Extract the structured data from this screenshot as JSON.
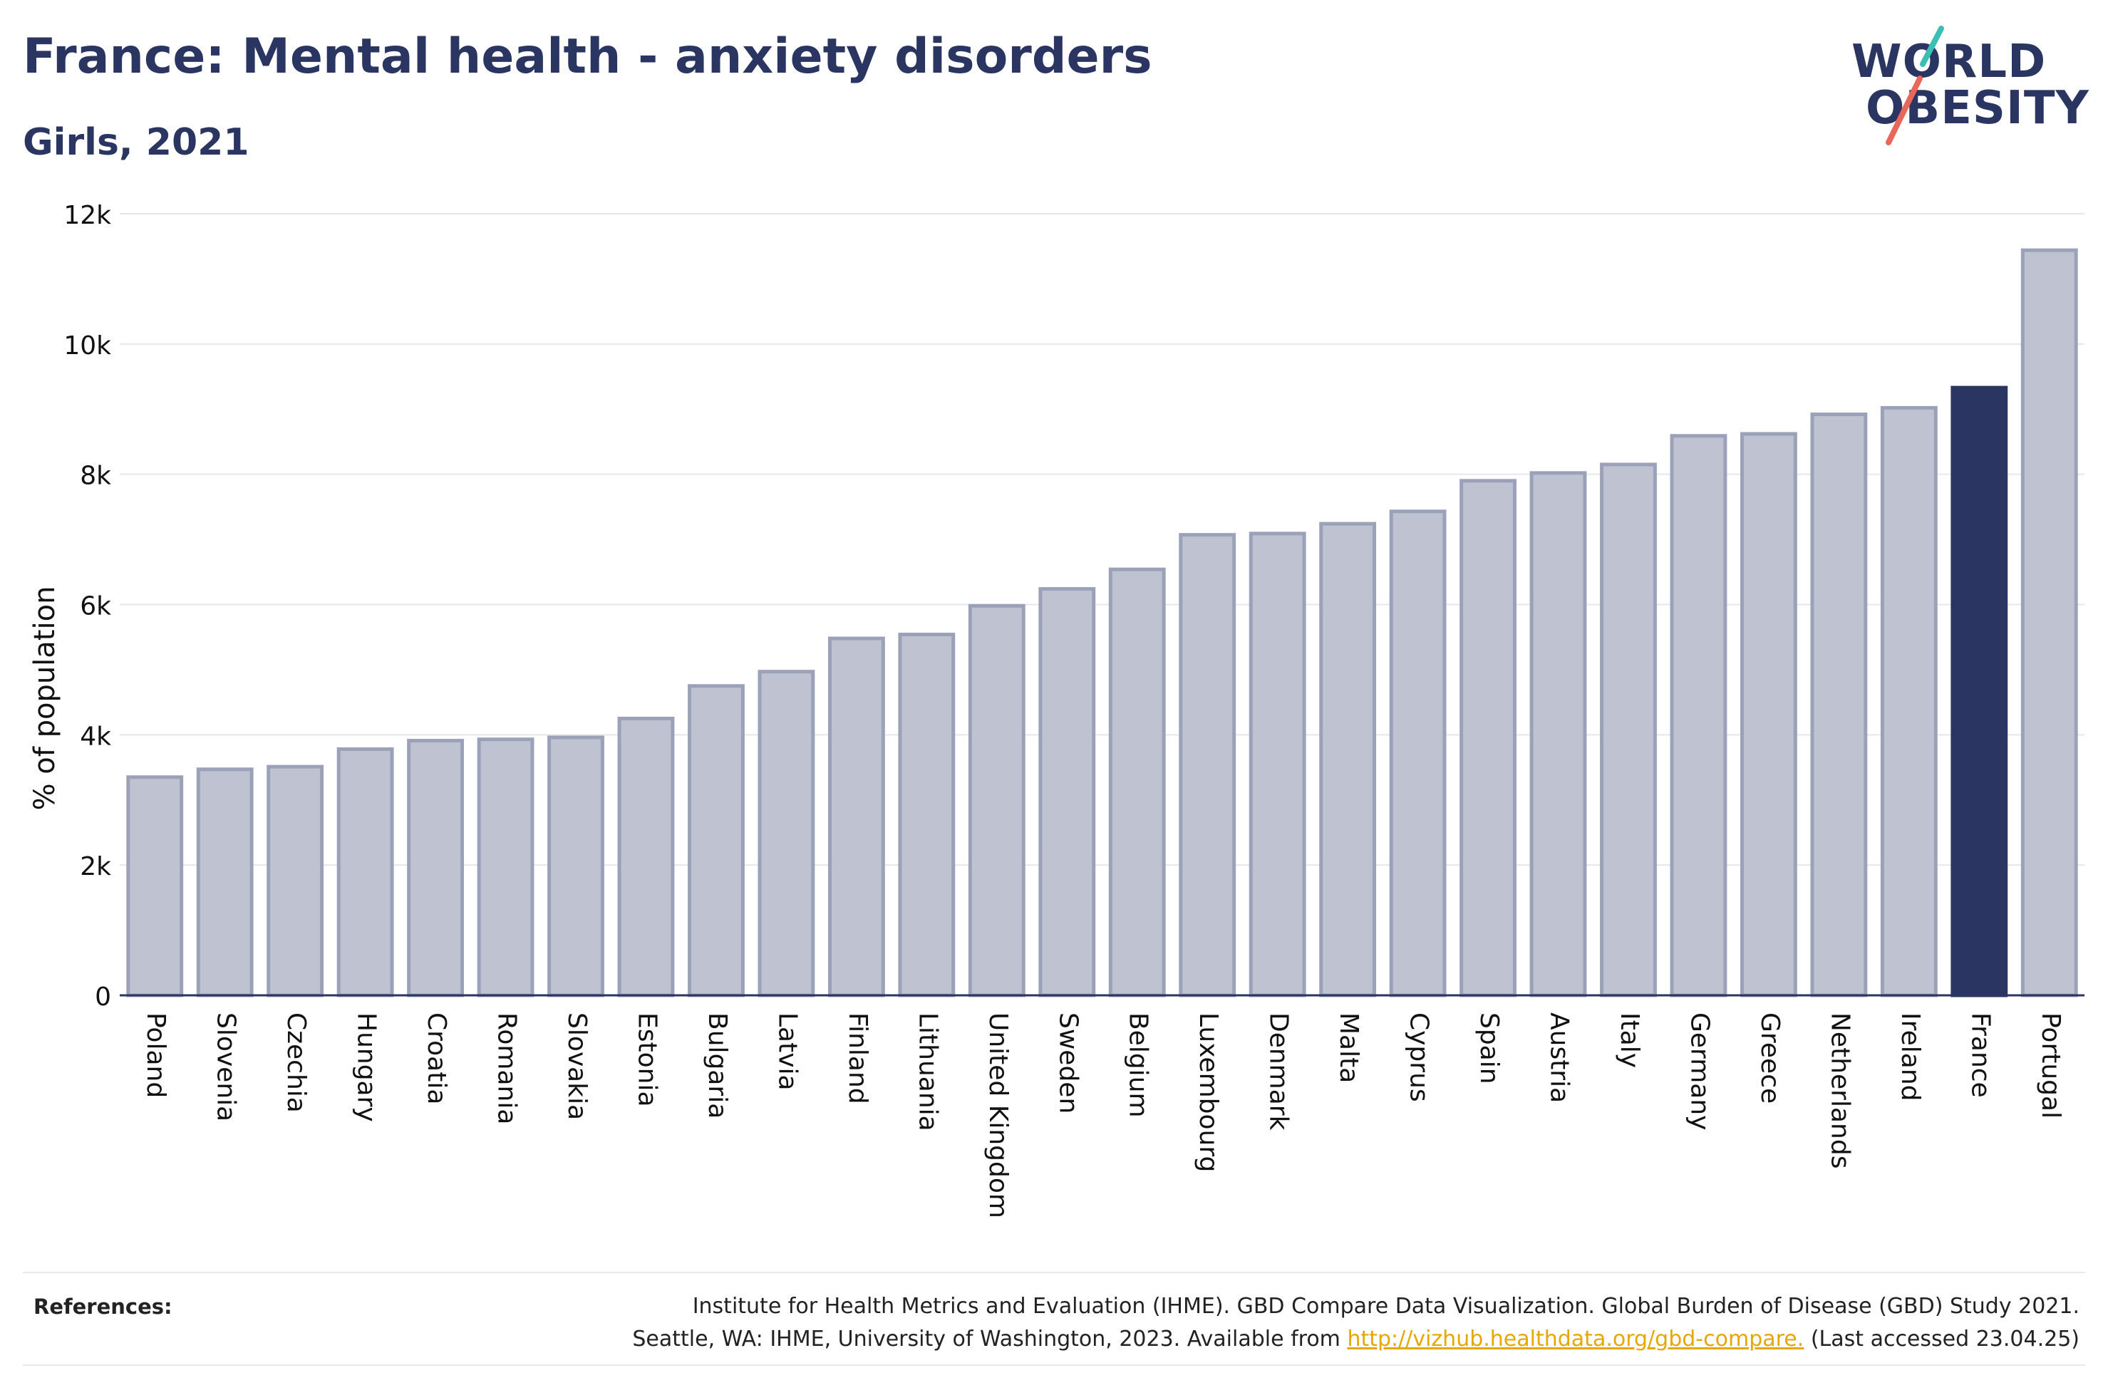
{
  "header": {
    "title": "France: Mental health - anxiety disorders",
    "subtitle": "Girls, 2021"
  },
  "logo": {
    "line1": "WORLD",
    "line2": "OBESITY",
    "accent_teal": "#3bbfb5",
    "accent_red": "#e8665a"
  },
  "colors": {
    "bar": "#bfc3d1",
    "bar_border": "#9ba1b8",
    "highlight": "#2b3561",
    "grid": "#e6e7ec",
    "axis": "#2b3561"
  },
  "chart_data": {
    "type": "bar",
    "title": "France: Mental health - anxiety disorders",
    "subtitle": "Girls, 2021",
    "ylabel": "% of population",
    "xlabel": "",
    "ylim": [
      0,
      12000
    ],
    "yticks": [
      0,
      2000,
      4000,
      6000,
      8000,
      10000,
      12000
    ],
    "ytick_labels": [
      "0",
      "2k",
      "4k",
      "6k",
      "8k",
      "10k",
      "12k"
    ],
    "grid": true,
    "highlight_category": "France",
    "categories": [
      "Poland",
      "Slovenia",
      "Czechia",
      "Hungary",
      "Croatia",
      "Romania",
      "Slovakia",
      "Estonia",
      "Bulgaria",
      "Latvia",
      "Finland",
      "Lithuania",
      "United Kingdom",
      "Sweden",
      "Belgium",
      "Luxembourg",
      "Denmark",
      "Malta",
      "Cyprus",
      "Spain",
      "Austria",
      "Italy",
      "Germany",
      "Greece",
      "Netherlands",
      "Ireland",
      "France",
      "Portugal"
    ],
    "values": [
      3350,
      3470,
      3510,
      3780,
      3910,
      3930,
      3960,
      4250,
      4750,
      4970,
      5480,
      5540,
      5980,
      6240,
      6540,
      7070,
      7090,
      7240,
      7430,
      7900,
      8020,
      8150,
      8590,
      8620,
      8920,
      9020,
      9330,
      11440
    ]
  },
  "references": {
    "label": "References:",
    "line1": "Institute for Health Metrics and Evaluation (IHME). GBD Compare Data Visualization. Global Burden of Disease (GBD) Study 2021.",
    "line2_pre": "Seattle, WA: IHME, University of Washington, 2023. Available from ",
    "link": "http://vizhub.healthdata.org/gbd-compare.",
    "line2_post": " (Last accessed 23.04.25)"
  }
}
